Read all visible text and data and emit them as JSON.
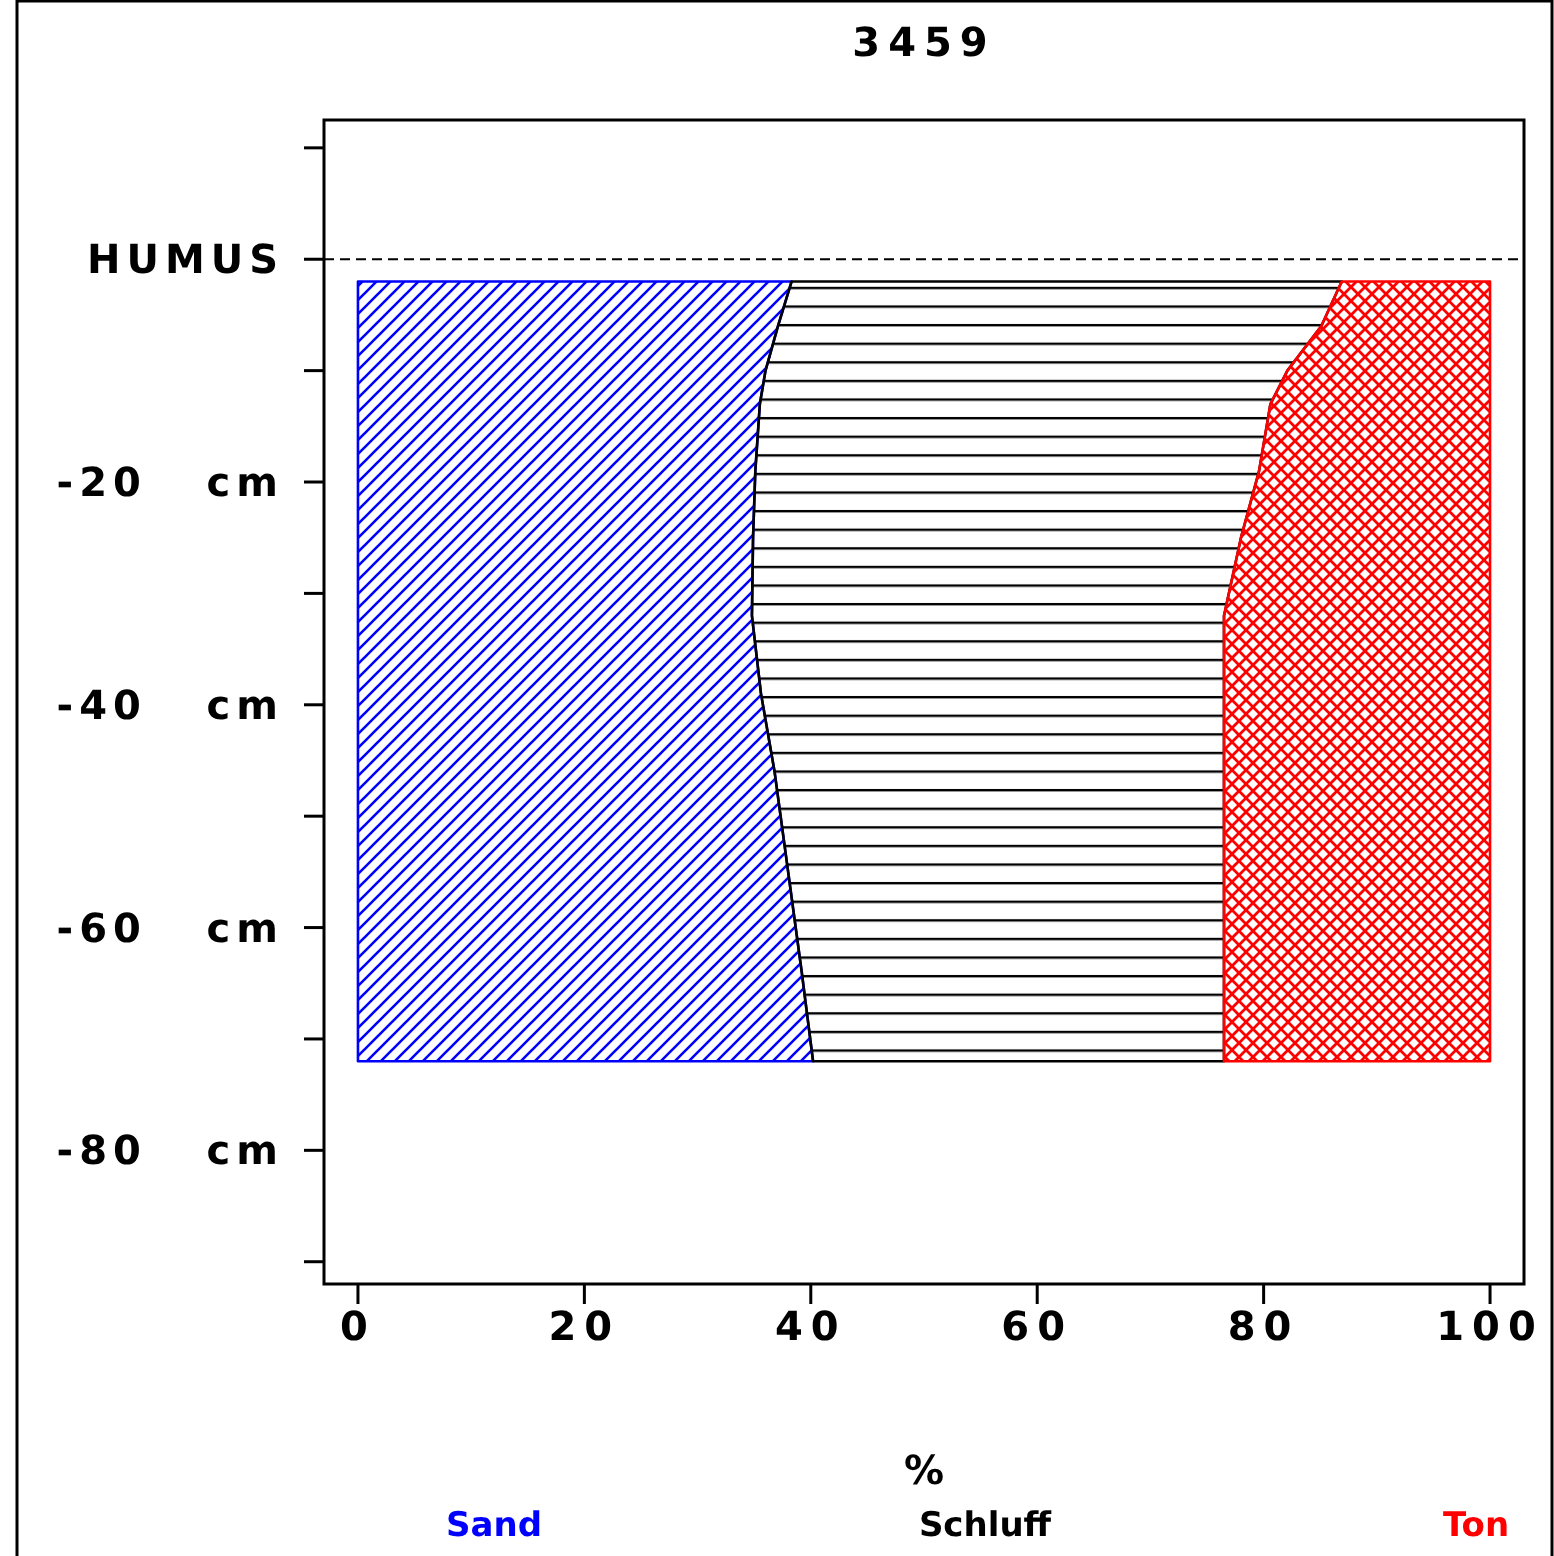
{
  "chart_data": {
    "type": "area",
    "title": "3459",
    "orientation": "horizontal",
    "stacked": true,
    "x": [
      -2,
      -6,
      -10,
      -13,
      -19,
      -25,
      -32,
      -39,
      -46,
      -55,
      -64,
      -72
    ],
    "series": [
      {
        "name": "Sand",
        "color": "#0000ff",
        "values": [
          38.3,
          37.1,
          36.0,
          35.5,
          35.1,
          34.9,
          34.8,
          35.6,
          36.8,
          38.0,
          39.2,
          40.2
        ]
      },
      {
        "name": "Schluff",
        "color": "#000000",
        "values": [
          48.6,
          48.0,
          46.1,
          45.1,
          44.5,
          43.1,
          41.7,
          40.9,
          39.7,
          38.5,
          37.3,
          36.3
        ]
      },
      {
        "name": "Ton",
        "color": "#ff0000",
        "values": [
          13.1,
          14.9,
          17.9,
          19.4,
          20.4,
          22.0,
          23.5,
          23.5,
          23.5,
          23.5,
          23.5,
          23.5
        ]
      }
    ],
    "xlabel": "%",
    "xlim": [
      -3,
      103
    ],
    "xticks": [
      0,
      20,
      40,
      60,
      80,
      100
    ],
    "ylim": [
      -92,
      12.5
    ],
    "yticks": [
      {
        "value": 10,
        "label": null
      },
      {
        "value": 0,
        "label": "HUMUS"
      },
      {
        "value": -10,
        "label": null
      },
      {
        "value": -20,
        "label": "-20 cm"
      },
      {
        "value": -30,
        "label": null
      },
      {
        "value": -40,
        "label": "-40 cm"
      },
      {
        "value": -50,
        "label": null
      },
      {
        "value": -60,
        "label": "-60 cm"
      },
      {
        "value": -70,
        "label": null
      },
      {
        "value": -80,
        "label": "-80 cm"
      },
      {
        "value": -90,
        "label": null
      }
    ],
    "ref_lines": [
      {
        "axis": "y",
        "value": 0,
        "color": "#000000",
        "line_style": "dashed"
      }
    ],
    "legend": "bottom"
  }
}
